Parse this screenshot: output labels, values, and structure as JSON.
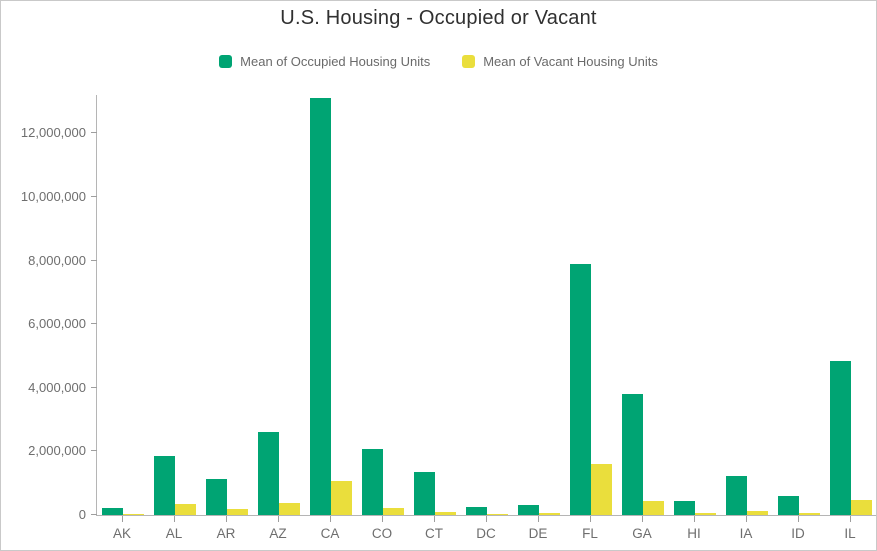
{
  "chart_data": {
    "type": "bar",
    "title": "U.S. Housing - Occupied or Vacant",
    "categories": [
      "AK",
      "AL",
      "AR",
      "AZ",
      "CA",
      "CO",
      "CT",
      "DC",
      "DE",
      "FL",
      "GA",
      "HI",
      "IA",
      "ID",
      "IL"
    ],
    "series": [
      {
        "key": "occupied",
        "name": "Mean of Occupied Housing Units",
        "color": "#00a473",
        "values": [
          230000,
          1850000,
          1130000,
          2600000,
          13100000,
          2080000,
          1360000,
          260000,
          330000,
          7900000,
          3800000,
          430000,
          1240000,
          610000,
          4850000
        ]
      },
      {
        "key": "vacant",
        "name": "Mean of Vacant Housing Units",
        "color": "#eade3c",
        "values": [
          40000,
          360000,
          190000,
          370000,
          1080000,
          210000,
          110000,
          30000,
          55000,
          1600000,
          450000,
          70000,
          115000,
          65000,
          470000
        ]
      }
    ],
    "xlabel": "",
    "ylabel": "",
    "ylim": [
      0,
      13200000
    ],
    "yticks": [
      0,
      2000000,
      4000000,
      6000000,
      8000000,
      10000000,
      12000000
    ],
    "ytick_labels": [
      "0",
      "2,000,000",
      "4,000,000",
      "6,000,000",
      "8,000,000",
      "10,000,000",
      "12,000,000"
    ],
    "legend_position": "top",
    "grid": false
  },
  "colors": {
    "axis_line": "#b5b5b5",
    "tick": "#9e9e9e",
    "axis_label": "#6e6e6e",
    "title": "#303030",
    "frame_border": "#c9c9c9"
  }
}
